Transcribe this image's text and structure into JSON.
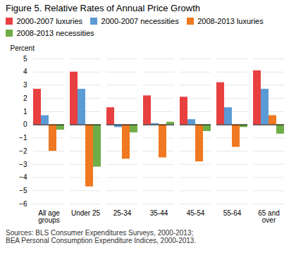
{
  "chart_data": {
    "type": "bar",
    "title": "Figure 5. Relative Rates of Annual Price Growth",
    "ylabel": "Percent",
    "categories": [
      "All age\ngroups",
      "Under 25",
      "25-34",
      "35-44",
      "45-54",
      "55-64",
      "65 and\nover"
    ],
    "series": [
      {
        "name": "2000-2007 luxuries",
        "color": "#e84040",
        "values": [
          2.7,
          4.0,
          1.3,
          2.2,
          2.1,
          3.2,
          4.1
        ]
      },
      {
        "name": "2000-2007 necessities",
        "color": "#5b9bd5",
        "values": [
          0.7,
          2.7,
          -0.2,
          0.1,
          0.4,
          1.3,
          2.7
        ]
      },
      {
        "name": "2008-2013 luxuries",
        "color": "#f07820",
        "values": [
          -2.0,
          -4.7,
          -2.6,
          -2.5,
          -2.8,
          -1.7,
          0.7
        ]
      },
      {
        "name": "2008-2013 necessities",
        "color": "#70ad47",
        "values": [
          -0.4,
          -3.2,
          -0.6,
          0.2,
          -0.5,
          -0.2,
          -0.7
        ]
      }
    ],
    "ylim": [
      -6,
      5
    ],
    "yticks": [
      -6,
      -5,
      -4,
      -3,
      -2,
      -1,
      0,
      1,
      2,
      3,
      4,
      5
    ],
    "grid": true,
    "legend": "top",
    "caption": "Sources:  BLS Consumer Expenditures Surveys, 2000-2013;\nBEA Personal Consumption Expenditure Indices, 2000-2013."
  }
}
